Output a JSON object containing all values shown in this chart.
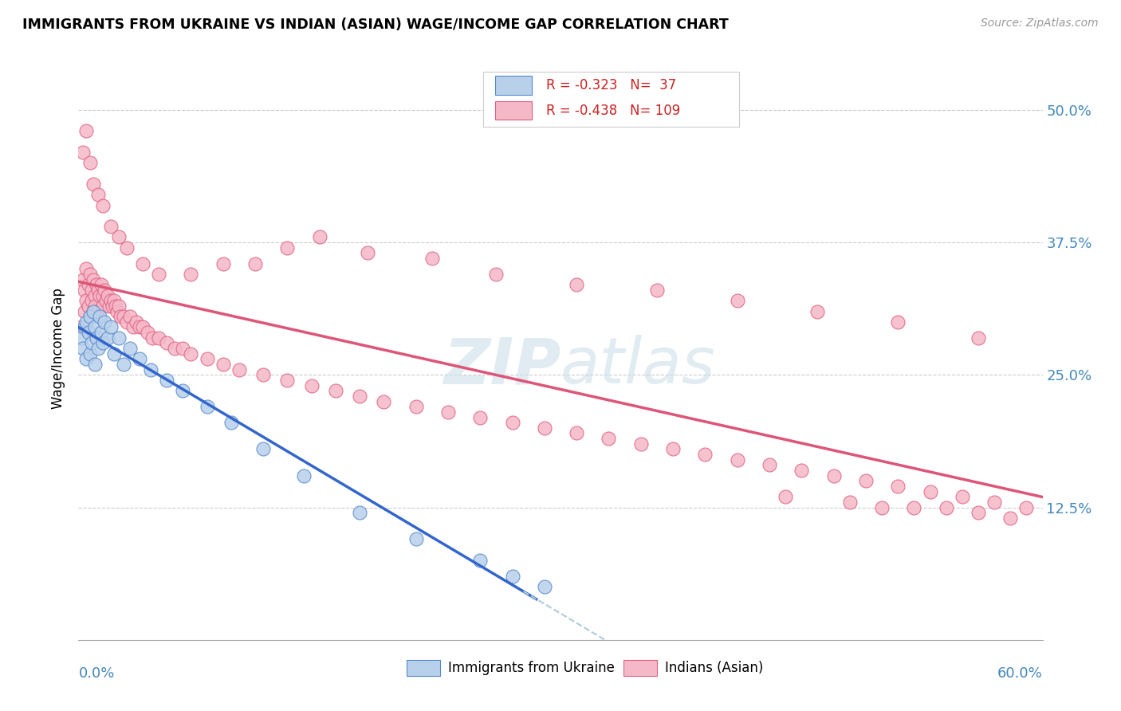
{
  "title": "IMMIGRANTS FROM UKRAINE VS INDIAN (ASIAN) WAGE/INCOME GAP CORRELATION CHART",
  "source": "Source: ZipAtlas.com",
  "ylabel": "Wage/Income Gap",
  "ytick_labels": [
    "50.0%",
    "37.5%",
    "25.0%",
    "12.5%"
  ],
  "ytick_values": [
    0.5,
    0.375,
    0.25,
    0.125
  ],
  "xlim": [
    0.0,
    0.6
  ],
  "ylim": [
    0.0,
    0.55
  ],
  "ukraine_R": -0.323,
  "ukraine_N": 37,
  "indian_R": -0.438,
  "indian_N": 109,
  "ukraine_color": "#b8d0ea",
  "ukraine_edge": "#5588cc",
  "indian_color": "#f5b8c8",
  "indian_edge": "#e06080",
  "ukraine_line_color": "#3366cc",
  "indian_line_color": "#dd5577",
  "dashed_line_color": "#aaccdd",
  "watermark_color": "#c8dde8",
  "legend_label_ukraine": "Immigrants from Ukraine",
  "legend_label_indian": "Indians (Asian)",
  "ukraine_x": [
    0.002,
    0.003,
    0.004,
    0.005,
    0.005,
    0.006,
    0.007,
    0.007,
    0.008,
    0.009,
    0.01,
    0.01,
    0.011,
    0.012,
    0.013,
    0.014,
    0.015,
    0.016,
    0.018,
    0.02,
    0.022,
    0.025,
    0.028,
    0.032,
    0.038,
    0.045,
    0.055,
    0.065,
    0.08,
    0.095,
    0.115,
    0.14,
    0.175,
    0.21,
    0.25,
    0.27,
    0.29
  ],
  "ukraine_y": [
    0.285,
    0.275,
    0.295,
    0.3,
    0.265,
    0.29,
    0.305,
    0.27,
    0.28,
    0.31,
    0.295,
    0.26,
    0.285,
    0.275,
    0.305,
    0.29,
    0.28,
    0.3,
    0.285,
    0.295,
    0.27,
    0.285,
    0.26,
    0.275,
    0.265,
    0.255,
    0.245,
    0.235,
    0.22,
    0.205,
    0.18,
    0.155,
    0.12,
    0.095,
    0.075,
    0.06,
    0.05
  ],
  "indian_x": [
    0.002,
    0.003,
    0.004,
    0.004,
    0.005,
    0.005,
    0.006,
    0.006,
    0.007,
    0.007,
    0.008,
    0.008,
    0.009,
    0.009,
    0.01,
    0.01,
    0.011,
    0.011,
    0.012,
    0.013,
    0.014,
    0.015,
    0.015,
    0.016,
    0.017,
    0.018,
    0.019,
    0.02,
    0.021,
    0.022,
    0.023,
    0.024,
    0.025,
    0.026,
    0.028,
    0.03,
    0.032,
    0.034,
    0.036,
    0.038,
    0.04,
    0.043,
    0.046,
    0.05,
    0.055,
    0.06,
    0.065,
    0.07,
    0.08,
    0.09,
    0.1,
    0.115,
    0.13,
    0.145,
    0.16,
    0.175,
    0.19,
    0.21,
    0.23,
    0.25,
    0.27,
    0.29,
    0.31,
    0.33,
    0.35,
    0.37,
    0.39,
    0.41,
    0.43,
    0.45,
    0.47,
    0.49,
    0.51,
    0.53,
    0.55,
    0.57,
    0.59,
    0.003,
    0.005,
    0.007,
    0.009,
    0.012,
    0.015,
    0.02,
    0.025,
    0.03,
    0.04,
    0.05,
    0.07,
    0.09,
    0.11,
    0.13,
    0.15,
    0.18,
    0.22,
    0.26,
    0.31,
    0.36,
    0.41,
    0.46,
    0.51,
    0.56,
    0.44,
    0.48,
    0.5,
    0.52,
    0.54,
    0.56,
    0.58
  ],
  "indian_y": [
    0.295,
    0.34,
    0.33,
    0.31,
    0.35,
    0.32,
    0.335,
    0.315,
    0.345,
    0.305,
    0.33,
    0.32,
    0.34,
    0.31,
    0.325,
    0.315,
    0.335,
    0.31,
    0.33,
    0.325,
    0.335,
    0.325,
    0.315,
    0.33,
    0.32,
    0.325,
    0.315,
    0.32,
    0.315,
    0.32,
    0.315,
    0.31,
    0.315,
    0.305,
    0.305,
    0.3,
    0.305,
    0.295,
    0.3,
    0.295,
    0.295,
    0.29,
    0.285,
    0.285,
    0.28,
    0.275,
    0.275,
    0.27,
    0.265,
    0.26,
    0.255,
    0.25,
    0.245,
    0.24,
    0.235,
    0.23,
    0.225,
    0.22,
    0.215,
    0.21,
    0.205,
    0.2,
    0.195,
    0.19,
    0.185,
    0.18,
    0.175,
    0.17,
    0.165,
    0.16,
    0.155,
    0.15,
    0.145,
    0.14,
    0.135,
    0.13,
    0.125,
    0.46,
    0.48,
    0.45,
    0.43,
    0.42,
    0.41,
    0.39,
    0.38,
    0.37,
    0.355,
    0.345,
    0.345,
    0.355,
    0.355,
    0.37,
    0.38,
    0.365,
    0.36,
    0.345,
    0.335,
    0.33,
    0.32,
    0.31,
    0.3,
    0.285,
    0.135,
    0.13,
    0.125,
    0.125,
    0.125,
    0.12,
    0.115
  ]
}
